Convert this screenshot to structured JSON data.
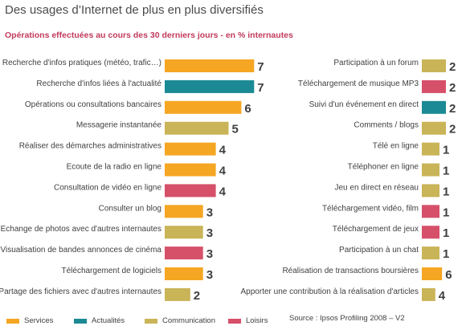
{
  "header": {
    "title": "Des usages d’Internet de plus en plus diversifiés",
    "subtitle": "Opérations effectuées au cours des 30 derniers jours - en % internautes"
  },
  "colors": {
    "Services": "#f5a623",
    "Actualités": "#1b8a94",
    "Communication": "#c9b458",
    "Loisirs": "#d6506a"
  },
  "legend": {
    "items": [
      {
        "label": "Services",
        "color": "#f5a623"
      },
      {
        "label": "Actualités",
        "color": "#1b8a94"
      },
      {
        "label": "Communication",
        "color": "#c9b458"
      },
      {
        "label": "Loisirs",
        "color": "#d6506a"
      }
    ]
  },
  "source": "Source : Ipsos Profiling 2008 – V2",
  "chart_data": [
    {
      "type": "bar",
      "orientation": "horizontal",
      "categories": [
        "Recherche d'infos pratiques (météo, trafic…)",
        "Recherche d'infos liées à l'actualité",
        "Opérations ou consultations bancaires",
        "Messagerie instantanée",
        "Réaliser des démarches administratives",
        "Ecoute de la radio en ligne",
        "Consultation de vidéo en ligne",
        "Consulter un blog",
        "Echange de photos avec d'autres internautes",
        "Visualisation de bandes annonces de cinéma",
        "Téléchargement de logiciels",
        "Partage des fichiers avec d'autres internautes"
      ],
      "values": [
        7,
        7,
        6,
        5,
        4,
        4,
        4,
        3,
        3,
        3,
        3,
        2
      ],
      "groups": [
        "Services",
        "Actualités",
        "Services",
        "Communication",
        "Services",
        "Services",
        "Loisirs",
        "Services",
        "Communication",
        "Loisirs",
        "Services",
        "Communication"
      ],
      "xlim": [
        0,
        7
      ]
    },
    {
      "type": "bar",
      "orientation": "horizontal",
      "categories": [
        "Participation à un forum",
        "Téléchargement de musique MP3",
        "Suivi d'un événement en direct",
        "Comments / blogs",
        "Télé en ligne",
        "Téléphoner en ligne",
        "Jeu en direct en réseau",
        "Téléchargement vidéo, film",
        "Téléchargement de jeux",
        "Participation à un chat",
        "Réalisation de transactions boursières",
        "Apporter une contribution à la réalisation d'articles"
      ],
      "values": [
        2,
        2,
        2,
        2,
        1,
        1,
        1,
        1,
        1,
        1,
        6,
        4
      ],
      "groups": [
        "Communication",
        "Loisirs",
        "Actualités",
        "Communication",
        "Communication",
        "Communication",
        "Communication",
        "Loisirs",
        "Loisirs",
        "Communication",
        "Services",
        "Communication"
      ],
      "xlim": [
        0,
        7
      ]
    }
  ]
}
